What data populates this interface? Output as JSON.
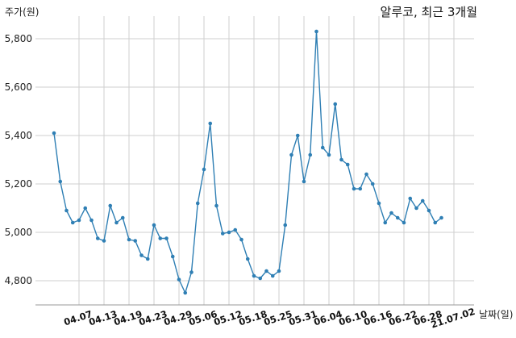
{
  "chart_data": {
    "type": "line",
    "title": "알루코, 최근 3개월",
    "xlabel": "날짜(일)",
    "ylabel": "주가(원)",
    "grid": true,
    "color": "#2f7fb4",
    "ylim": [
      4700,
      5900
    ],
    "yticks": [
      4800,
      5000,
      5200,
      5400,
      5600,
      5800
    ],
    "ytick_labels": [
      "4,800",
      "5,000",
      "5,200",
      "5,400",
      "5,600",
      "5,800"
    ],
    "xtick_labels": [
      "04.07",
      "04.13",
      "04.19",
      "04.23",
      "04.29",
      "05.06",
      "05.12",
      "05.18",
      "05.25",
      "05.31",
      "06.04",
      "06.10",
      "06.16",
      "06.22",
      "06.28",
      "21.07.02"
    ],
    "xtick_index": [
      4,
      8,
      12,
      16,
      20,
      24,
      28,
      32,
      36,
      40,
      44,
      48,
      52,
      56,
      60,
      64
    ],
    "series": [
      {
        "values": [
          5410,
          5210,
          5090,
          5040,
          5050,
          5100,
          5050,
          4975,
          4965,
          5110,
          5040,
          5060,
          4970,
          4965,
          4905,
          4890,
          5030,
          4975,
          4975,
          4900,
          4805,
          4750,
          4835,
          5120,
          5260,
          5450,
          5110,
          4995,
          5000,
          5010,
          4970,
          4890,
          4820,
          4810,
          4840,
          4820,
          4840,
          5030,
          5320,
          5400,
          5210,
          5320,
          5830,
          5350,
          5320,
          5530,
          5300,
          5280,
          5180,
          5180,
          5240,
          5200,
          5120,
          5040,
          5080,
          5060,
          5040,
          5140,
          5100,
          5130,
          5090,
          5040,
          5060
        ]
      }
    ]
  }
}
